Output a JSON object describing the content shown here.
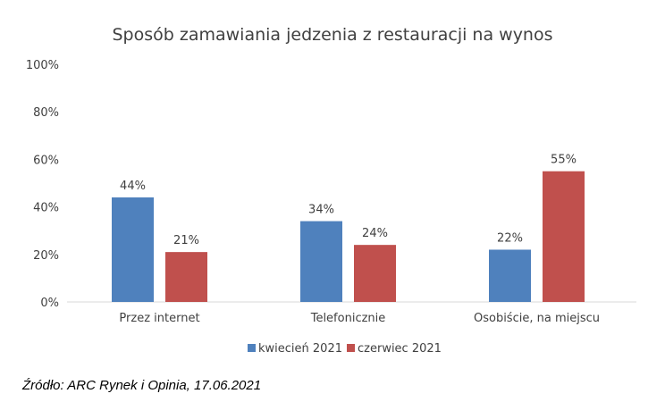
{
  "chart_data": {
    "type": "bar",
    "title": "Sposób zamawiania jedzenia z restauracji na wynos",
    "categories": [
      "Przez internet",
      "Telefonicznie",
      "Osobiście, na miejscu"
    ],
    "series": [
      {
        "name": "kwiecień 2021",
        "values": [
          44,
          34,
          22
        ],
        "color": "#4F81BD"
      },
      {
        "name": "czerwiec 2021",
        "values": [
          21,
          24,
          55
        ],
        "color": "#C0504D"
      }
    ],
    "ylim": [
      0,
      100
    ],
    "yticks": [
      0,
      20,
      40,
      60,
      80,
      100
    ],
    "value_suffix": "%",
    "grid": false,
    "legend": "bottom"
  },
  "source": "Źródło: ARC Rynek i Opinia, 17.06.2021"
}
